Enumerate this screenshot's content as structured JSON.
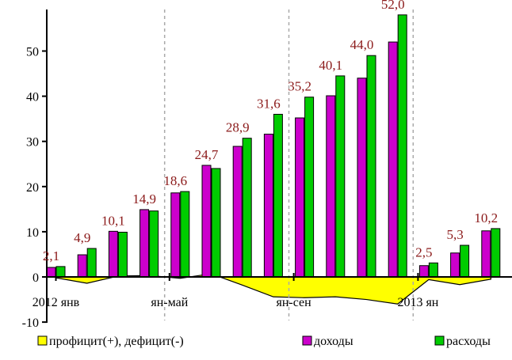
{
  "chart_data": {
    "type": "bar",
    "title": "",
    "xlabel": "",
    "ylabel": "",
    "ylim": [
      -10,
      60
    ],
    "yticks": [
      -10,
      0,
      10,
      20,
      30,
      40,
      50
    ],
    "ytick_labels": [
      "-10",
      "0",
      "10",
      "20",
      "30",
      "40",
      "50"
    ],
    "x_tick_labels": [
      {
        "index": 0,
        "label": "2012 янв"
      },
      {
        "index": 4,
        "label": "ян-май"
      },
      {
        "index": 8,
        "label": "ян-сен"
      },
      {
        "index": 12,
        "label": "2013 ян"
      }
    ],
    "separators_after_index": [
      3.5,
      7.5,
      11.5
    ],
    "categories": [
      "1",
      "2",
      "3",
      "4",
      "5",
      "6",
      "7",
      "8",
      "9",
      "10",
      "11",
      "12",
      "13",
      "14",
      "15"
    ],
    "series": [
      {
        "name": "доходы",
        "kind": "bar",
        "color": "#CC00CC",
        "values": [
          2.1,
          4.9,
          10.1,
          14.9,
          18.6,
          24.7,
          28.9,
          31.6,
          35.2,
          40.1,
          44.0,
          52.0,
          2.5,
          5.3,
          10.2
        ]
      },
      {
        "name": "расходы",
        "kind": "bar",
        "color": "#00CC00",
        "values": [
          2.3,
          6.3,
          9.9,
          14.6,
          18.9,
          24.0,
          30.7,
          36.0,
          39.8,
          44.5,
          49.0,
          58.0,
          3.1,
          7.0,
          10.7
        ]
      },
      {
        "name": "профицит(+), дефицит(-)",
        "kind": "area",
        "color": "#FFFF00",
        "values": [
          -0.2,
          -1.4,
          0.2,
          0.3,
          -0.3,
          0.7,
          -1.8,
          -4.4,
          -4.6,
          -4.4,
          -5.0,
          -6.0,
          -0.6,
          -1.7,
          -0.5
        ]
      }
    ],
    "data_labels": [
      "2,1",
      "4,9",
      "10,1",
      "14,9",
      "18,6",
      "24,7",
      "28,9",
      "31,6",
      "35,2",
      "40,1",
      "44,0",
      "52,0",
      "2,5",
      "5,3",
      "10,2"
    ],
    "legend": {
      "position": "bottom",
      "items": [
        {
          "label": "профицит(+), дефицит(-)",
          "color": "#FFFF00"
        },
        {
          "label": "доходы",
          "color": "#CC00CC"
        },
        {
          "label": "расходы",
          "color": "#00CC00"
        }
      ]
    },
    "grid": false
  }
}
